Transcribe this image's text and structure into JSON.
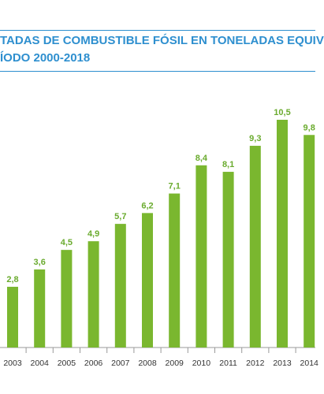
{
  "chart_data": {
    "type": "bar",
    "title_line1": "TADAS DE COMBUSTIBLE FÓSIL EN TONELADAS EQUIV",
    "title_line2": "ÍODO 2000-2018",
    "categories": [
      "2003",
      "2004",
      "2005",
      "2006",
      "2007",
      "2008",
      "2009",
      "2010",
      "2011",
      "2012",
      "2013",
      "2014"
    ],
    "values": [
      2.8,
      3.6,
      4.5,
      4.9,
      5.7,
      6.2,
      7.1,
      8.4,
      8.1,
      9.3,
      10.5,
      9.8
    ],
    "value_labels": [
      "2,8",
      "3,6",
      "4,5",
      "4,9",
      "5,7",
      "6,2",
      "7,1",
      "8,4",
      "8,1",
      "9,3",
      "10,5",
      "9,8"
    ],
    "ylim": [
      0,
      10.5
    ],
    "grid": false,
    "colors": {
      "bar": "#7ab72f",
      "value_label": "#6aab2e",
      "title": "#2e8fcf",
      "axis": "#999999"
    }
  }
}
